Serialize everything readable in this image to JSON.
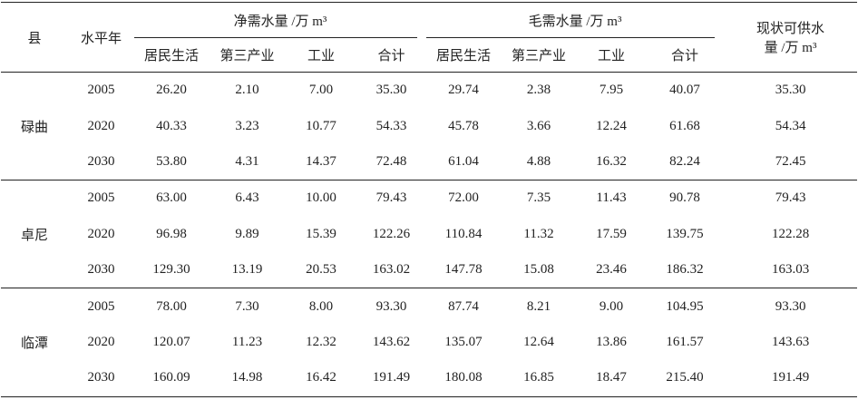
{
  "table": {
    "header_top": [
      "县",
      "水平年",
      "净需水量 /万 m³",
      "毛需水量 /万 m³",
      "现状可供水量 /万 m³"
    ],
    "header_sub": [
      "居民生活",
      "第三产业",
      "工业",
      "合计",
      "居民生活",
      "第三产业",
      "工业",
      "合计"
    ],
    "groups": [
      {
        "county": "碌曲",
        "rows": [
          [
            "2005",
            "26.20",
            "2.10",
            "7.00",
            "35.30",
            "29.74",
            "2.38",
            "7.95",
            "40.07",
            "35.30"
          ],
          [
            "2020",
            "40.33",
            "3.23",
            "10.77",
            "54.33",
            "45.78",
            "3.66",
            "12.24",
            "61.68",
            "54.34"
          ],
          [
            "2030",
            "53.80",
            "4.31",
            "14.37",
            "72.48",
            "61.04",
            "4.88",
            "16.32",
            "82.24",
            "72.45"
          ]
        ]
      },
      {
        "county": "卓尼",
        "rows": [
          [
            "2005",
            "63.00",
            "6.43",
            "10.00",
            "79.43",
            "72.00",
            "7.35",
            "11.43",
            "90.78",
            "79.43"
          ],
          [
            "2020",
            "96.98",
            "9.89",
            "15.39",
            "122.26",
            "110.84",
            "11.32",
            "17.59",
            "139.75",
            "122.28"
          ],
          [
            "2030",
            "129.30",
            "13.19",
            "20.53",
            "163.02",
            "147.78",
            "15.08",
            "23.46",
            "186.32",
            "163.03"
          ]
        ]
      },
      {
        "county": "临潭",
        "rows": [
          [
            "2005",
            "78.00",
            "7.30",
            "8.00",
            "93.30",
            "87.74",
            "8.21",
            "9.00",
            "104.95",
            "93.30"
          ],
          [
            "2020",
            "120.07",
            "11.23",
            "12.32",
            "143.62",
            "135.07",
            "12.64",
            "13.86",
            "161.57",
            "143.63"
          ],
          [
            "2030",
            "160.09",
            "14.98",
            "16.42",
            "191.49",
            "180.08",
            "16.85",
            "18.47",
            "215.40",
            "191.49"
          ]
        ]
      }
    ]
  }
}
